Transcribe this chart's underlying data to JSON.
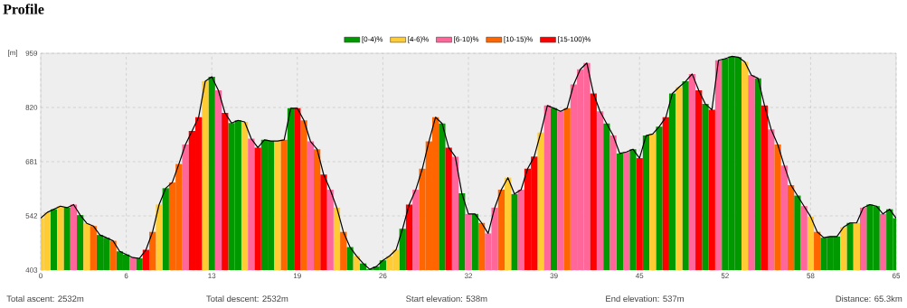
{
  "chart_data": {
    "type": "bar",
    "title": "Profile",
    "ylabel": "[m]",
    "x": [
      0,
      0.5,
      1,
      1.5,
      2,
      2.5,
      3,
      3.5,
      4,
      4.5,
      5,
      5.5,
      6,
      6.5,
      7,
      7.5,
      8,
      8.5,
      9,
      9.5,
      10,
      10.5,
      11,
      11.5,
      12,
      12.5,
      13,
      13.5,
      14,
      14.5,
      15,
      15.5,
      16,
      16.5,
      17,
      17.5,
      18,
      18.5,
      19,
      19.5,
      20,
      20.5,
      21,
      21.5,
      22,
      22.5,
      23,
      23.5,
      24,
      24.5,
      25,
      25.5,
      26,
      26.5,
      27,
      27.5,
      28,
      28.5,
      29,
      29.5,
      30,
      30.5,
      31,
      31.5,
      32,
      32.5,
      33,
      33.5,
      34,
      34.5,
      35,
      35.5,
      36,
      36.5,
      37,
      37.5,
      38,
      38.5,
      39,
      39.5,
      40,
      40.5,
      41,
      41.5,
      42,
      42.5,
      43,
      43.5,
      44,
      44.5,
      45,
      45.5,
      46,
      46.5,
      47,
      47.5,
      48,
      48.5,
      49,
      49.5,
      50,
      50.5,
      51,
      51.5,
      52,
      52.5,
      53,
      53.5,
      54,
      54.5,
      55,
      55.5,
      56,
      56.5,
      57,
      57.5,
      58,
      58.5,
      59,
      59.5,
      60,
      60.5,
      61,
      61.5,
      62,
      62.5,
      63,
      63.5,
      64,
      64.5,
      65
    ],
    "series": [
      {
        "name": "[0-4)%",
        "color": "#009900",
        "values": [
          null,
          null,
          559,
          null,
          563,
          null,
          544,
          null,
          null,
          493,
          486,
          null,
          451,
          443,
          null,
          433,
          null,
          null,
          null,
          613,
          null,
          null,
          null,
          null,
          null,
          null,
          899,
          null,
          null,
          780,
          787,
          null,
          null,
          null,
          737,
          734,
          null,
          null,
          818,
          null,
          null,
          null,
          null,
          null,
          null,
          null,
          null,
          462,
          null,
          420,
          405,
          412,
          428,
          null,
          null,
          509,
          null,
          null,
          null,
          null,
          null,
          779,
          null,
          null,
          600,
          null,
          547,
          null,
          null,
          null,
          null,
          null,
          598,
          null,
          null,
          null,
          null,
          null,
          818,
          null,
          null,
          null,
          null,
          null,
          null,
          null,
          779,
          null,
          702,
          null,
          713,
          null,
          748,
          null,
          771,
          null,
          856,
          null,
          887,
          null,
          null,
          829,
          null,
          null,
          945,
          951,
          949,
          null,
          null,
          895,
          null,
          null,
          null,
          null,
          null,
          594,
          null,
          null,
          null,
          486,
          489,
          489,
          null,
          524,
          null,
          null,
          571,
          567,
          null,
          559,
          536
        ]
      },
      {
        "name": "[4-6)%",
        "color": "#ffcc33",
        "values": [
          536,
          551,
          null,
          567,
          null,
          null,
          null,
          523,
          null,
          null,
          null,
          null,
          null,
          null,
          null,
          null,
          null,
          null,
          571,
          null,
          null,
          null,
          null,
          null,
          null,
          887,
          null,
          null,
          null,
          null,
          null,
          783,
          null,
          null,
          null,
          null,
          734,
          null,
          null,
          null,
          null,
          null,
          null,
          null,
          null,
          563,
          null,
          null,
          439,
          null,
          null,
          null,
          null,
          439,
          455,
          null,
          null,
          null,
          null,
          null,
          null,
          null,
          null,
          null,
          null,
          null,
          null,
          null,
          null,
          null,
          null,
          640,
          null,
          null,
          null,
          null,
          756,
          null,
          null,
          null,
          null,
          null,
          null,
          null,
          null,
          null,
          null,
          null,
          null,
          null,
          null,
          null,
          null,
          752,
          null,
          null,
          null,
          872,
          null,
          null,
          null,
          null,
          null,
          null,
          null,
          null,
          null,
          937,
          null,
          null,
          null,
          null,
          null,
          null,
          null,
          null,
          null,
          540,
          null,
          null,
          null,
          null,
          513,
          null,
          524,
          null,
          null,
          null,
          null,
          null,
          null
        ]
      },
      {
        "name": "[6-10)%",
        "color": "#ff6699",
        "values": [
          null,
          null,
          null,
          null,
          null,
          571,
          null,
          null,
          null,
          null,
          null,
          null,
          null,
          null,
          435,
          null,
          null,
          null,
          null,
          null,
          null,
          null,
          725,
          null,
          null,
          null,
          null,
          864,
          null,
          null,
          null,
          null,
          740,
          null,
          null,
          null,
          null,
          null,
          null,
          null,
          null,
          733,
          null,
          null,
          609,
          null,
          null,
          null,
          null,
          null,
          null,
          null,
          null,
          null,
          null,
          null,
          null,
          609,
          null,
          null,
          null,
          null,
          null,
          694,
          null,
          547,
          null,
          null,
          497,
          563,
          null,
          null,
          null,
          609,
          null,
          null,
          null,
          825,
          null,
          810,
          null,
          879,
          918,
          934,
          null,
          810,
          null,
          748,
          null,
          706,
          null,
          null,
          null,
          null,
          null,
          null,
          null,
          null,
          null,
          906,
          null,
          null,
          null,
          941,
          null,
          null,
          null,
          null,
          903,
          null,
          null,
          764,
          null,
          671,
          null,
          null,
          567,
          null,
          null,
          null,
          null,
          null,
          null,
          null,
          null,
          563,
          null,
          null,
          547,
          null,
          null
        ]
      },
      {
        "name": "[10-15)%",
        "color": "#ff6600",
        "values": [
          null,
          null,
          null,
          null,
          null,
          null,
          null,
          null,
          516,
          null,
          null,
          478,
          null,
          null,
          null,
          null,
          null,
          501,
          null,
          null,
          628,
          675,
          null,
          null,
          null,
          null,
          null,
          null,
          null,
          null,
          null,
          null,
          null,
          null,
          null,
          null,
          null,
          737,
          null,
          null,
          787,
          null,
          713,
          null,
          null,
          null,
          501,
          null,
          null,
          null,
          null,
          null,
          null,
          null,
          null,
          null,
          null,
          null,
          663,
          733,
          795,
          null,
          null,
          null,
          null,
          null,
          null,
          524,
          null,
          null,
          609,
          null,
          null,
          null,
          null,
          null,
          null,
          null,
          null,
          null,
          818,
          null,
          null,
          null,
          null,
          null,
          null,
          null,
          null,
          null,
          null,
          null,
          null,
          null,
          null,
          null,
          null,
          null,
          null,
          null,
          null,
          null,
          null,
          null,
          null,
          null,
          null,
          null,
          null,
          null,
          null,
          null,
          725,
          null,
          621,
          null,
          null,
          null,
          501,
          null,
          null,
          null,
          null,
          null,
          null,
          null,
          null,
          null,
          null,
          null,
          null
        ]
      },
      {
        "name": "[15-100)%",
        "color": "#ff0000",
        "values": [
          null,
          null,
          null,
          null,
          null,
          null,
          null,
          null,
          null,
          null,
          null,
          null,
          null,
          null,
          null,
          null,
          455,
          null,
          null,
          null,
          null,
          null,
          null,
          760,
          795,
          null,
          null,
          null,
          806,
          null,
          null,
          null,
          null,
          717,
          null,
          null,
          null,
          null,
          null,
          818,
          null,
          null,
          null,
          648,
          null,
          null,
          null,
          null,
          null,
          null,
          null,
          null,
          null,
          null,
          null,
          null,
          571,
          null,
          null,
          null,
          null,
          null,
          717,
          null,
          null,
          null,
          null,
          null,
          null,
          null,
          null,
          null,
          null,
          null,
          663,
          694,
          null,
          null,
          null,
          null,
          null,
          null,
          null,
          null,
          856,
          null,
          null,
          null,
          null,
          null,
          null,
          690,
          null,
          null,
          null,
          795,
          null,
          null,
          null,
          null,
          864,
          null,
          814,
          null,
          null,
          null,
          null,
          null,
          null,
          null,
          825,
          null,
          null,
          null,
          null,
          null,
          null,
          null,
          null,
          null,
          null,
          null,
          null,
          null,
          null,
          null,
          null,
          null,
          null,
          null,
          null
        ]
      },
      {
        "type": "line",
        "color": "#000000",
        "values": [
          536,
          551,
          559,
          567,
          563,
          571,
          544,
          523,
          516,
          493,
          486,
          478,
          451,
          443,
          435,
          433,
          455,
          501,
          571,
          613,
          628,
          675,
          725,
          760,
          795,
          887,
          899,
          864,
          806,
          780,
          787,
          783,
          740,
          717,
          737,
          734,
          734,
          737,
          818,
          818,
          787,
          733,
          713,
          648,
          609,
          563,
          501,
          462,
          439,
          420,
          405,
          412,
          428,
          439,
          455,
          509,
          571,
          609,
          663,
          733,
          795,
          779,
          717,
          694,
          600,
          547,
          547,
          524,
          497,
          563,
          609,
          640,
          598,
          609,
          663,
          694,
          756,
          825,
          818,
          810,
          818,
          879,
          918,
          934,
          856,
          810,
          779,
          748,
          702,
          706,
          713,
          690,
          748,
          752,
          771,
          795,
          856,
          872,
          887,
          906,
          864,
          829,
          814,
          941,
          945,
          951,
          949,
          937,
          903,
          895,
          825,
          764,
          725,
          671,
          621,
          594,
          567,
          540,
          501,
          486,
          489,
          489,
          513,
          524,
          524,
          563,
          571,
          567,
          547,
          559,
          536
        ]
      }
    ],
    "xlim": [
      0,
      65
    ],
    "ylim": [
      403,
      959
    ],
    "xticks": [
      0,
      {
        "value": 6.5,
        "label": "6"
      },
      13,
      {
        "value": 19.5,
        "label": "19"
      },
      26,
      {
        "value": 32.5,
        "label": "32"
      },
      39,
      {
        "value": 45.5,
        "label": "45"
      },
      52,
      {
        "value": 58.5,
        "label": "58"
      },
      65
    ],
    "yticks": [
      403,
      542,
      681,
      820,
      959
    ],
    "grid": true,
    "legend": "top",
    "annotations": [
      "Total ascent: 2532m",
      "Total descent: 2532m",
      "Start elevation: 538m",
      "End elevation: 537m",
      "Distance: 65.3km"
    ]
  }
}
